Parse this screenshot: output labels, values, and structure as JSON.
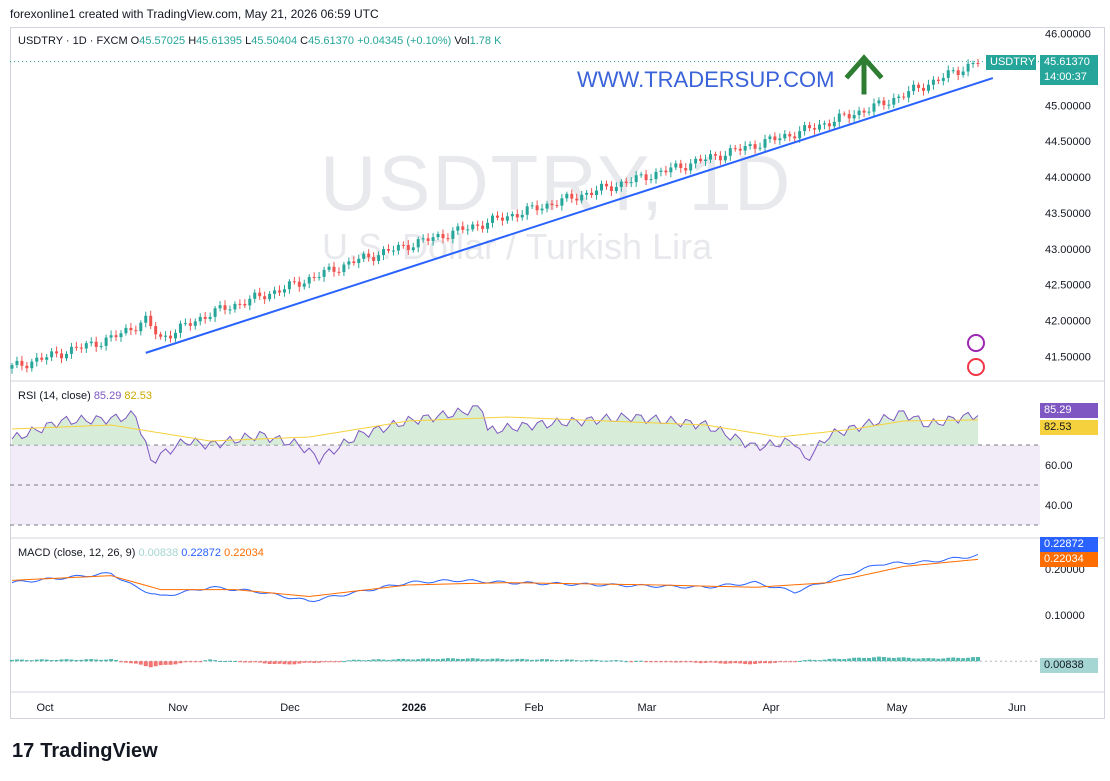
{
  "header": {
    "attribution": "forexonline1 created with TradingView.com, May 21, 2026 06:59 UTC"
  },
  "legend": {
    "symbol": "USDTRY · 1D · FXCM",
    "o_label": "O",
    "o": "45.57025",
    "h_label": "H",
    "h": "45.61395",
    "l_label": "L",
    "l": "45.50404",
    "c_label": "C",
    "c": "45.61370",
    "change": "+0.04345 (+0.10%)",
    "vol_label": "Vol",
    "vol": "1.78 K"
  },
  "watermark": {
    "symbol": "USDTRY, 1D",
    "name": "U.S. Dollar / Turkish Lira"
  },
  "annotation": {
    "site": "WWW.TRADERSUP.COM"
  },
  "price_tag": {
    "symbol": "USDTRY",
    "price": "45.61370",
    "countdown": "14:00:37"
  },
  "rsi": {
    "label": "RSI (14, close)",
    "value": "85.29",
    "ma": "82.53"
  },
  "macd": {
    "label": "MACD (close, 12, 26, 9)",
    "hist": "0.00838",
    "macd": "0.22872",
    "signal": "0.22034"
  },
  "footer": {
    "logo": "17",
    "brand": "TradingView"
  },
  "colors": {
    "up": "#26a69a",
    "down": "#ef5350",
    "trend": "#2962ff",
    "rsi": "#7e57c2",
    "rsi_ma": "#f5d13d",
    "macd": "#2962ff",
    "signal": "#ff6d00"
  },
  "chart_data": [
    {
      "type": "candlestick",
      "title": "USDTRY · 1D · FXCM",
      "x_ticks": [
        "Oct",
        "Nov",
        "Dec",
        "2026",
        "Feb",
        "Mar",
        "Apr",
        "May",
        "Jun"
      ],
      "y_ticks": [
        "41.50000",
        "42.00000",
        "42.50000",
        "43.00000",
        "43.50000",
        "44.00000",
        "44.50000",
        "45.00000",
        "46.00000"
      ],
      "ylim": [
        41.2,
        46.05
      ],
      "close_path": [
        [
          0,
          41.35
        ],
        [
          10,
          41.55
        ],
        [
          20,
          41.75
        ],
        [
          27,
          42.0
        ],
        [
          30,
          41.75
        ],
        [
          40,
          42.1
        ],
        [
          55,
          42.45
        ],
        [
          70,
          42.85
        ],
        [
          85,
          43.15
        ],
        [
          100,
          43.45
        ],
        [
          115,
          43.75
        ],
        [
          130,
          44.05
        ],
        [
          145,
          44.35
        ],
        [
          160,
          44.65
        ],
        [
          175,
          45.0
        ],
        [
          185,
          45.3
        ],
        [
          195,
          45.61
        ]
      ],
      "n_candles": 196,
      "trendline": {
        "start": [
          27,
          41.55
        ],
        "end": [
          198,
          45.38
        ]
      },
      "arrow": "up"
    },
    {
      "type": "line",
      "title": "RSI (14, close)",
      "y_ticks": [
        "60.00",
        "40.00"
      ],
      "bands": [
        70,
        30
      ],
      "ylim": [
        25,
        100
      ],
      "rsi_path": [
        [
          0,
          73
        ],
        [
          10,
          82
        ],
        [
          20,
          83
        ],
        [
          25,
          85
        ],
        [
          28,
          62
        ],
        [
          35,
          72
        ],
        [
          40,
          70
        ],
        [
          50,
          75
        ],
        [
          58,
          70
        ],
        [
          62,
          63
        ],
        [
          70,
          75
        ],
        [
          80,
          82
        ],
        [
          90,
          86
        ],
        [
          95,
          89
        ],
        [
          96,
          77
        ],
        [
          105,
          80
        ],
        [
          115,
          82
        ],
        [
          125,
          84
        ],
        [
          140,
          80
        ],
        [
          150,
          69
        ],
        [
          158,
          72
        ],
        [
          160,
          62
        ],
        [
          165,
          75
        ],
        [
          175,
          82
        ],
        [
          180,
          86
        ],
        [
          185,
          80
        ],
        [
          190,
          83
        ],
        [
          195,
          85.29
        ]
      ],
      "ma_path": [
        [
          0,
          78
        ],
        [
          20,
          80
        ],
        [
          40,
          72
        ],
        [
          60,
          74
        ],
        [
          80,
          82
        ],
        [
          100,
          84
        ],
        [
          120,
          82
        ],
        [
          140,
          80
        ],
        [
          155,
          74
        ],
        [
          170,
          78
        ],
        [
          180,
          82
        ],
        [
          195,
          82.53
        ]
      ]
    },
    {
      "type": "line",
      "title": "MACD (close, 12, 26, 9)",
      "y_ticks": [
        "0.20000",
        "0.10000"
      ],
      "ylim": [
        -0.06,
        0.26
      ],
      "macd_path": [
        [
          0,
          0.17
        ],
        [
          10,
          0.18
        ],
        [
          20,
          0.19
        ],
        [
          25,
          0.16
        ],
        [
          30,
          0.14
        ],
        [
          40,
          0.16
        ],
        [
          50,
          0.15
        ],
        [
          60,
          0.13
        ],
        [
          70,
          0.15
        ],
        [
          80,
          0.17
        ],
        [
          90,
          0.175
        ],
        [
          100,
          0.17
        ],
        [
          120,
          0.165
        ],
        [
          140,
          0.16
        ],
        [
          150,
          0.17
        ],
        [
          158,
          0.15
        ],
        [
          165,
          0.175
        ],
        [
          175,
          0.21
        ],
        [
          185,
          0.215
        ],
        [
          195,
          0.22872
        ]
      ],
      "signal_path": [
        [
          0,
          0.175
        ],
        [
          20,
          0.185
        ],
        [
          30,
          0.155
        ],
        [
          45,
          0.155
        ],
        [
          60,
          0.14
        ],
        [
          80,
          0.165
        ],
        [
          100,
          0.17
        ],
        [
          130,
          0.165
        ],
        [
          150,
          0.16
        ],
        [
          165,
          0.17
        ],
        [
          180,
          0.205
        ],
        [
          195,
          0.22034
        ]
      ],
      "hist_path": [
        [
          0,
          0.003
        ],
        [
          20,
          0.004
        ],
        [
          28,
          -0.012
        ],
        [
          40,
          0.003
        ],
        [
          55,
          -0.007
        ],
        [
          70,
          0.003
        ],
        [
          90,
          0.006
        ],
        [
          120,
          0.002
        ],
        [
          150,
          -0.006
        ],
        [
          160,
          0.002
        ],
        [
          175,
          0.009
        ],
        [
          185,
          0.006
        ],
        [
          195,
          0.00838
        ]
      ]
    }
  ]
}
